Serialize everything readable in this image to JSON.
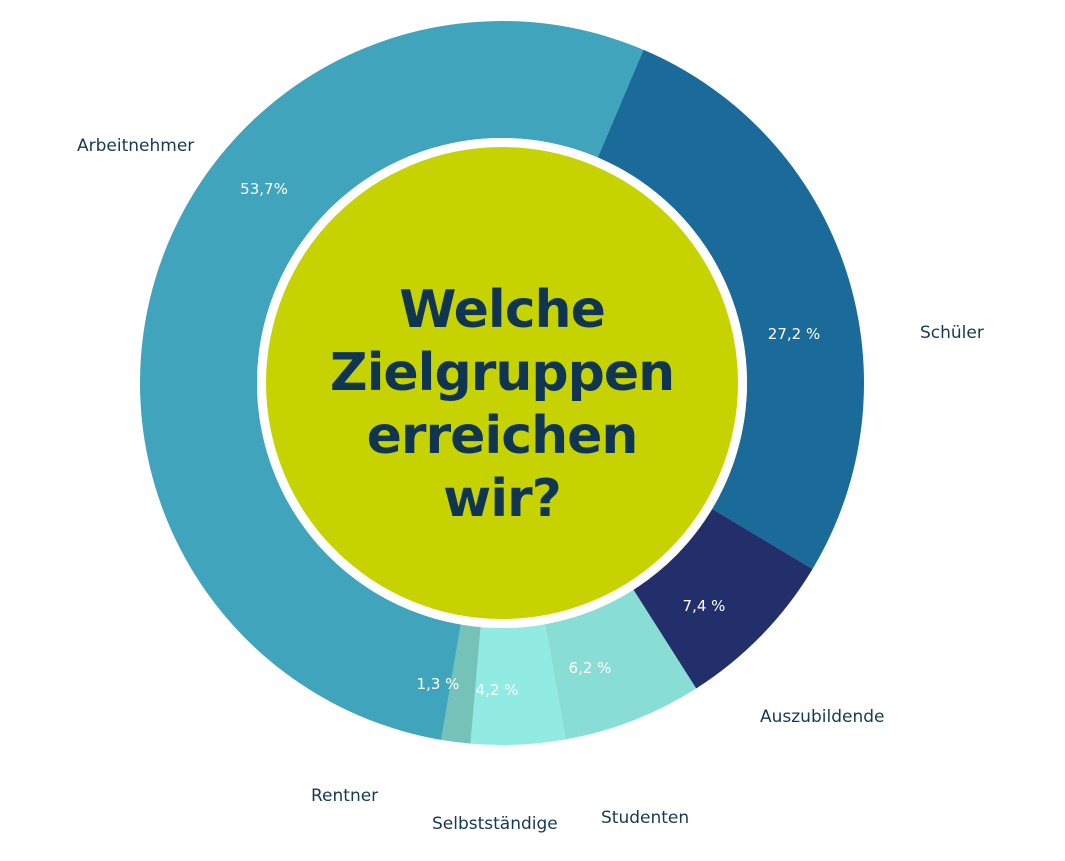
{
  "chart_data": {
    "type": "pie",
    "title_lines": [
      "Welche",
      "Zielgruppen",
      "erreichen",
      "wir?"
    ],
    "slices": [
      {
        "label": "Schüler",
        "value": 27.2,
        "value_text": "27,2 %",
        "color": "#1a6a9a"
      },
      {
        "label": "Auszubildende",
        "value": 7.4,
        "value_text": "7,4 %",
        "color": "#232f6b"
      },
      {
        "label": "Studenten",
        "value": 6.2,
        "value_text": "6,2 %",
        "color": "#88ded4"
      },
      {
        "label": "Selbstständige",
        "value": 4.2,
        "value_text": "4,2 %",
        "color": "#92ebe2"
      },
      {
        "label": "Rentner",
        "value": 1.3,
        "value_text": "1,3 %",
        "color": "#75c2b8"
      },
      {
        "label": "Arbeitnehmer",
        "value": 53.7,
        "value_text": "53,7%",
        "color": "#40a4bc"
      }
    ],
    "center_color": "#c7d300"
  }
}
